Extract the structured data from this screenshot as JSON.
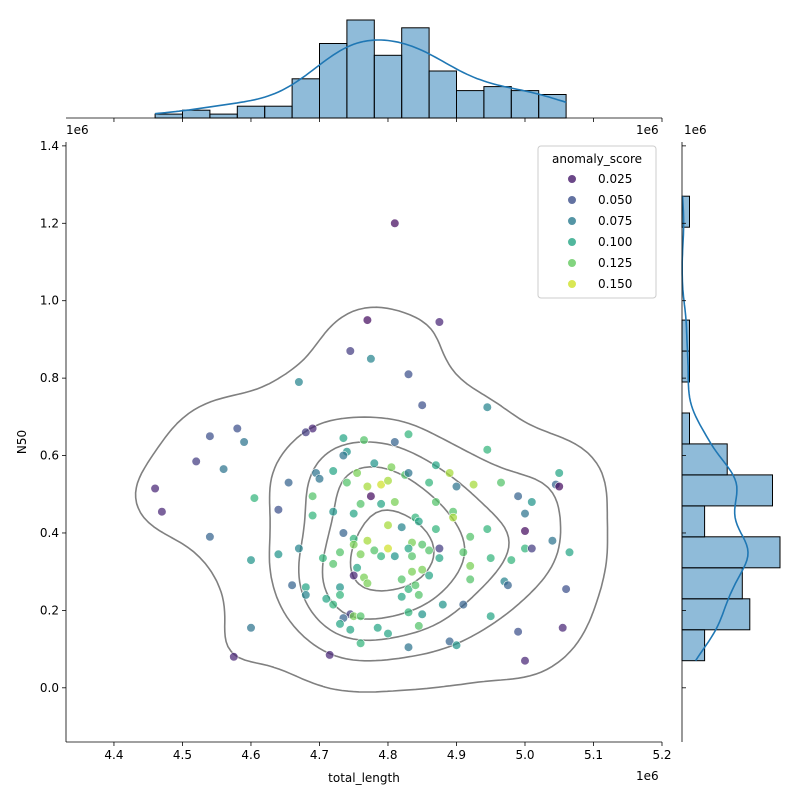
{
  "chart_data": {
    "type": "scatter",
    "subtype": "jointplot",
    "xlabel": "total_length",
    "ylabel": "N50",
    "x_offset_label": "1e6",
    "y_offset_label": "1e6",
    "xlim": [
      4.33,
      5.2
    ],
    "ylim": [
      -0.14,
      1.41
    ],
    "x_ticks": [
      "4.4",
      "4.5",
      "4.6",
      "4.7",
      "4.8",
      "4.9",
      "5.0",
      "5.1",
      "5.2"
    ],
    "y_ticks": [
      "0.0",
      "0.2",
      "0.4",
      "0.6",
      "0.8",
      "1.0",
      "1.2",
      "1.4"
    ],
    "legend": {
      "title": "anomaly_score",
      "placement": "upper-right",
      "entries": [
        "0.025",
        "0.050",
        "0.075",
        "0.100",
        "0.125",
        "0.150"
      ]
    },
    "colormap": "viridis",
    "points": [
      [
        4.81,
        1.2,
        0.02
      ],
      [
        4.77,
        0.95,
        0.02
      ],
      [
        4.875,
        0.945,
        0.03
      ],
      [
        4.745,
        0.87,
        0.04
      ],
      [
        4.775,
        0.85,
        0.08
      ],
      [
        4.83,
        0.81,
        0.05
      ],
      [
        4.67,
        0.79,
        0.08
      ],
      [
        4.85,
        0.73,
        0.05
      ],
      [
        4.945,
        0.725,
        0.08
      ],
      [
        4.58,
        0.67,
        0.05
      ],
      [
        4.69,
        0.67,
        0.03
      ],
      [
        4.68,
        0.66,
        0.04
      ],
      [
        4.54,
        0.65,
        0.05
      ],
      [
        4.59,
        0.635,
        0.07
      ],
      [
        4.735,
        0.645,
        0.1
      ],
      [
        4.765,
        0.64,
        0.12
      ],
      [
        4.81,
        0.635,
        0.06
      ],
      [
        4.83,
        0.655,
        0.11
      ],
      [
        4.945,
        0.615,
        0.11
      ],
      [
        4.52,
        0.585,
        0.04
      ],
      [
        4.56,
        0.565,
        0.07
      ],
      [
        4.74,
        0.61,
        0.09
      ],
      [
        4.735,
        0.6,
        0.07
      ],
      [
        4.78,
        0.58,
        0.09
      ],
      [
        4.805,
        0.57,
        0.13
      ],
      [
        4.87,
        0.575,
        0.1
      ],
      [
        4.695,
        0.555,
        0.07
      ],
      [
        4.72,
        0.56,
        0.1
      ],
      [
        4.755,
        0.555,
        0.13
      ],
      [
        4.825,
        0.55,
        0.12
      ],
      [
        4.83,
        0.555,
        0.07
      ],
      [
        4.89,
        0.555,
        0.14
      ],
      [
        4.965,
        0.53,
        0.12
      ],
      [
        5.05,
        0.555,
        0.1
      ],
      [
        5.045,
        0.525,
        0.06
      ],
      [
        5.05,
        0.52,
        0.02
      ],
      [
        4.46,
        0.515,
        0.03
      ],
      [
        4.655,
        0.53,
        0.06
      ],
      [
        4.7,
        0.54,
        0.07
      ],
      [
        4.74,
        0.53,
        0.12
      ],
      [
        4.77,
        0.52,
        0.14
      ],
      [
        4.79,
        0.525,
        0.15
      ],
      [
        4.8,
        0.535,
        0.14
      ],
      [
        4.86,
        0.53,
        0.11
      ],
      [
        4.9,
        0.52,
        0.07
      ],
      [
        4.925,
        0.525,
        0.14
      ],
      [
        4.99,
        0.495,
        0.06
      ],
      [
        5.01,
        0.48,
        0.09
      ],
      [
        4.605,
        0.49,
        0.11
      ],
      [
        4.69,
        0.495,
        0.12
      ],
      [
        4.775,
        0.495,
        0.02
      ],
      [
        4.76,
        0.475,
        0.12
      ],
      [
        4.79,
        0.475,
        0.1
      ],
      [
        4.81,
        0.48,
        0.13
      ],
      [
        4.87,
        0.48,
        0.12
      ],
      [
        4.895,
        0.455,
        0.12
      ],
      [
        4.47,
        0.455,
        0.03
      ],
      [
        4.64,
        0.46,
        0.05
      ],
      [
        4.72,
        0.455,
        0.09
      ],
      [
        4.75,
        0.45,
        0.1
      ],
      [
        4.84,
        0.44,
        0.11
      ],
      [
        4.845,
        0.43,
        0.1
      ],
      [
        4.895,
        0.44,
        0.14
      ],
      [
        5.0,
        0.45,
        0.07
      ],
      [
        4.69,
        0.445,
        0.11
      ],
      [
        4.8,
        0.42,
        0.14
      ],
      [
        4.82,
        0.415,
        0.08
      ],
      [
        4.87,
        0.41,
        0.11
      ],
      [
        4.945,
        0.41,
        0.11
      ],
      [
        5.0,
        0.405,
        0.02
      ],
      [
        4.54,
        0.39,
        0.06
      ],
      [
        4.735,
        0.4,
        0.06
      ],
      [
        4.75,
        0.385,
        0.11
      ],
      [
        4.77,
        0.38,
        0.14
      ],
      [
        4.835,
        0.375,
        0.13
      ],
      [
        4.85,
        0.37,
        0.12
      ],
      [
        4.92,
        0.39,
        0.12
      ],
      [
        5.04,
        0.38,
        0.07
      ],
      [
        4.67,
        0.36,
        0.08
      ],
      [
        4.75,
        0.37,
        0.13
      ],
      [
        4.78,
        0.355,
        0.12
      ],
      [
        4.8,
        0.36,
        0.15
      ],
      [
        4.83,
        0.36,
        0.1
      ],
      [
        4.86,
        0.355,
        0.12
      ],
      [
        4.875,
        0.36,
        0.04
      ],
      [
        4.91,
        0.35,
        0.12
      ],
      [
        5.0,
        0.36,
        0.11
      ],
      [
        5.01,
        0.36,
        0.04
      ],
      [
        5.065,
        0.35,
        0.1
      ],
      [
        4.6,
        0.33,
        0.09
      ],
      [
        4.64,
        0.345,
        0.09
      ],
      [
        4.705,
        0.335,
        0.11
      ],
      [
        4.73,
        0.35,
        0.12
      ],
      [
        4.76,
        0.345,
        0.13
      ],
      [
        4.79,
        0.34,
        0.11
      ],
      [
        4.81,
        0.34,
        0.09
      ],
      [
        4.835,
        0.34,
        0.12
      ],
      [
        4.875,
        0.335,
        0.1
      ],
      [
        4.95,
        0.335,
        0.11
      ],
      [
        4.98,
        0.33,
        0.11
      ],
      [
        4.72,
        0.32,
        0.12
      ],
      [
        4.755,
        0.31,
        0.1
      ],
      [
        4.835,
        0.3,
        0.13
      ],
      [
        4.85,
        0.305,
        0.13
      ],
      [
        4.92,
        0.315,
        0.13
      ],
      [
        4.75,
        0.29,
        0.03
      ],
      [
        4.765,
        0.285,
        0.13
      ],
      [
        4.82,
        0.28,
        0.12
      ],
      [
        4.86,
        0.29,
        0.1
      ],
      [
        4.92,
        0.28,
        0.12
      ],
      [
        4.97,
        0.275,
        0.08
      ],
      [
        4.66,
        0.265,
        0.06
      ],
      [
        4.68,
        0.26,
        0.1
      ],
      [
        4.73,
        0.26,
        0.09
      ],
      [
        4.77,
        0.27,
        0.13
      ],
      [
        4.83,
        0.255,
        0.11
      ],
      [
        4.84,
        0.265,
        0.12
      ],
      [
        4.975,
        0.265,
        0.06
      ],
      [
        5.06,
        0.255,
        0.05
      ],
      [
        4.68,
        0.24,
        0.08
      ],
      [
        4.71,
        0.23,
        0.1
      ],
      [
        4.73,
        0.24,
        0.11
      ],
      [
        4.82,
        0.235,
        0.1
      ],
      [
        4.845,
        0.24,
        0.12
      ],
      [
        4.88,
        0.215,
        0.09
      ],
      [
        4.91,
        0.215,
        0.06
      ],
      [
        4.95,
        0.185,
        0.1
      ],
      [
        4.72,
        0.215,
        0.11
      ],
      [
        4.745,
        0.19,
        0.04
      ],
      [
        4.75,
        0.185,
        0.13
      ],
      [
        4.76,
        0.185,
        0.12
      ],
      [
        4.83,
        0.195,
        0.11
      ],
      [
        4.85,
        0.19,
        0.09
      ],
      [
        4.735,
        0.18,
        0.06
      ],
      [
        4.73,
        0.165,
        0.1
      ],
      [
        4.785,
        0.155,
        0.1
      ],
      [
        4.845,
        0.16,
        0.12
      ],
      [
        5.055,
        0.155,
        0.03
      ],
      [
        4.6,
        0.155,
        0.07
      ],
      [
        4.745,
        0.15,
        0.1
      ],
      [
        4.8,
        0.14,
        0.1
      ],
      [
        4.89,
        0.12,
        0.06
      ],
      [
        4.9,
        0.11,
        0.09
      ],
      [
        4.76,
        0.115,
        0.11
      ],
      [
        4.83,
        0.105,
        0.07
      ],
      [
        4.575,
        0.08,
        0.03
      ],
      [
        4.715,
        0.085,
        0.03
      ],
      [
        5.0,
        0.07,
        0.03
      ],
      [
        4.99,
        0.145,
        0.05
      ]
    ],
    "x_hist": {
      "bin_start": 4.46,
      "bin_width": 0.04,
      "counts": [
        1,
        2,
        1,
        3,
        3,
        10,
        19,
        25,
        16,
        23,
        12,
        7,
        8,
        7,
        6
      ]
    },
    "y_hist": {
      "bin_start": 0.07,
      "bin_width": 0.08,
      "counts": [
        3,
        9,
        8,
        13,
        3,
        12,
        6,
        1,
        0,
        1,
        1,
        0,
        0,
        0,
        1
      ]
    },
    "kde_levels": 5
  }
}
